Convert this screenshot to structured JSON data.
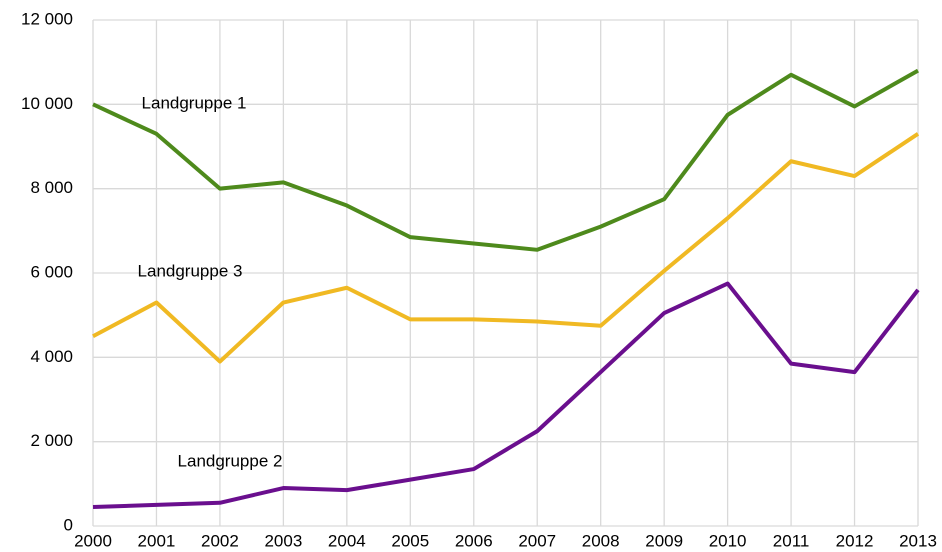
{
  "chart_data": {
    "type": "line",
    "x": [
      2000,
      2001,
      2002,
      2003,
      2004,
      2005,
      2006,
      2007,
      2008,
      2009,
      2010,
      2011,
      2012,
      2013
    ],
    "series": [
      {
        "name": "Landgruppe 1",
        "color": "#4e8a1c",
        "values": [
          10000,
          9300,
          8000,
          8150,
          7600,
          6850,
          6700,
          6550,
          7100,
          7750,
          9750,
          10700,
          9950,
          10800
        ]
      },
      {
        "name": "Landgruppe 3",
        "color": "#f0b923",
        "values": [
          4500,
          5300,
          3900,
          5300,
          5650,
          4900,
          4900,
          4850,
          4750,
          6050,
          7300,
          8650,
          8300,
          9300
        ]
      },
      {
        "name": "Landgruppe 2",
        "color": "#6a0f8e",
        "values": [
          450,
          500,
          550,
          900,
          850,
          1100,
          1350,
          2250,
          3650,
          5050,
          5750,
          3850,
          3650,
          5600
        ]
      }
    ],
    "xlim": [
      2000,
      2013
    ],
    "xticks": [
      2000,
      2001,
      2002,
      2003,
      2004,
      2005,
      2006,
      2007,
      2008,
      2009,
      2010,
      2011,
      2012,
      2013
    ],
    "ylim": [
      0,
      12000
    ],
    "yticks": [
      0,
      {
        "value": 2000,
        "label": "2 000"
      },
      {
        "value": 4000,
        "label": "4 000"
      },
      {
        "value": 6000,
        "label": "6 000"
      },
      {
        "value": 8000,
        "label": "8 000"
      },
      {
        "value": 10000,
        "label": "10 000"
      },
      {
        "value": 12000,
        "label": "12 000"
      }
    ],
    "grid": true
  }
}
